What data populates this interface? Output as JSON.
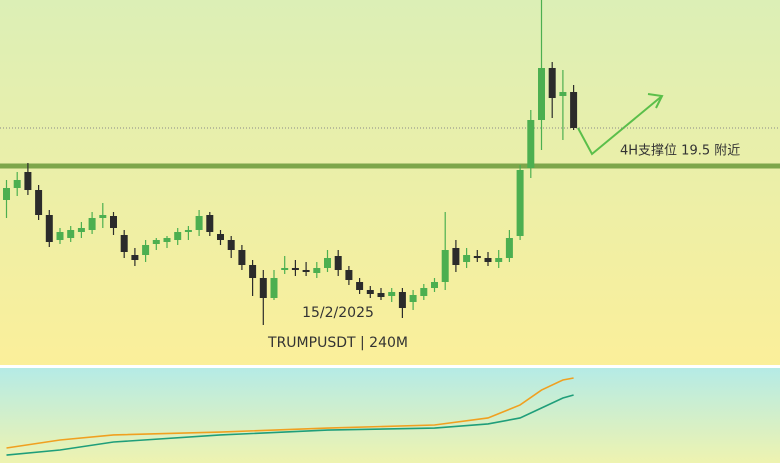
{
  "chart_data": [
    {
      "type": "candlestick",
      "symbol_label": "TRUMPUSDT | 240M",
      "date_label": "15/2/2025",
      "annotation": "4H支撑位 19.5 附近",
      "support": 19.5,
      "last_price": 20.45,
      "ylim": [
        14.525,
        23.65
      ],
      "up_color": "#4caf50",
      "down_color": "#2b2b2b",
      "open": [
        18.65,
        18.95,
        19.35,
        18.9,
        18.275,
        17.65,
        17.7,
        17.85,
        17.9,
        18.2,
        18.25,
        17.775,
        17.275,
        17.275,
        17.55,
        17.6,
        17.65,
        17.85,
        17.9,
        18.275,
        17.8,
        17.65,
        17.4,
        17.025,
        16.7,
        16.2,
        16.9,
        16.95,
        16.9,
        16.825,
        16.95,
        17.25,
        16.9,
        16.6,
        16.4,
        16.325,
        16.25,
        16.35,
        16.1,
        16.25,
        16.45,
        16.6,
        17.45,
        17.1,
        17.25,
        17.2,
        17.1,
        17.2,
        17.75,
        19.45,
        20.65,
        21.95,
        21.25,
        21.35
      ],
      "high": [
        19.15,
        19.35,
        19.575,
        19.025,
        18.4,
        17.95,
        18.0,
        18.1,
        18.35,
        18.575,
        18.35,
        17.9,
        17.45,
        17.65,
        17.7,
        17.75,
        17.95,
        18.0,
        18.4,
        18.35,
        17.9,
        17.75,
        17.525,
        17.15,
        16.9,
        16.9,
        17.25,
        17.15,
        17.1,
        17.1,
        17.4,
        17.4,
        17.0,
        16.7,
        16.5,
        16.45,
        16.45,
        16.45,
        16.4,
        16.55,
        16.7,
        18.35,
        17.65,
        17.45,
        17.4,
        17.35,
        17.4,
        17.9,
        19.525,
        20.9,
        23.65,
        22.1,
        21.9,
        21.525
      ],
      "low": [
        18.2,
        18.75,
        18.775,
        18.15,
        17.475,
        17.55,
        17.6,
        17.7,
        17.8,
        17.95,
        17.775,
        17.2,
        17.0,
        17.1,
        17.4,
        17.45,
        17.525,
        17.65,
        17.75,
        17.75,
        17.525,
        17.2,
        16.9,
        16.25,
        15.525,
        16.15,
        16.8,
        16.75,
        16.75,
        16.7,
        16.85,
        16.75,
        16.525,
        16.3,
        16.2,
        16.15,
        16.1,
        15.7,
        15.9,
        16.15,
        16.35,
        16.4,
        16.85,
        16.95,
        17.1,
        17.0,
        16.95,
        17.1,
        17.65,
        19.2,
        19.9,
        20.7,
        20.15,
        20.4
      ],
      "close": [
        18.95,
        19.15,
        18.9,
        18.275,
        17.6,
        17.85,
        17.9,
        17.95,
        18.2,
        18.275,
        17.95,
        17.35,
        17.15,
        17.525,
        17.65,
        17.7,
        17.85,
        17.9,
        18.25,
        17.85,
        17.65,
        17.4,
        17.025,
        16.7,
        16.2,
        16.7,
        16.95,
        16.9,
        16.85,
        16.95,
        17.2,
        16.9,
        16.65,
        16.4,
        16.3,
        16.225,
        16.35,
        15.95,
        16.275,
        16.45,
        16.6,
        17.4,
        17.025,
        17.275,
        17.2,
        17.1,
        17.2,
        17.7,
        19.4,
        20.65,
        21.95,
        21.2,
        21.35,
        20.45
      ]
    },
    {
      "type": "line",
      "ylim": [
        0,
        100
      ],
      "x": [
        0,
        5,
        10,
        20,
        30,
        40,
        45,
        48,
        50,
        52,
        53
      ],
      "series": [
        {
          "color": "#f0a020",
          "values": [
            15.8,
            24.2,
            29.5,
            32.6,
            36.8,
            40,
            47.4,
            61.1,
            76.8,
            87.4,
            89.5
          ]
        },
        {
          "color": "#1f9e7a",
          "values": [
            8.4,
            13.7,
            22.1,
            29.5,
            34.7,
            36.8,
            41.1,
            47.4,
            57.9,
            68.4,
            71.6
          ]
        }
      ]
    }
  ]
}
